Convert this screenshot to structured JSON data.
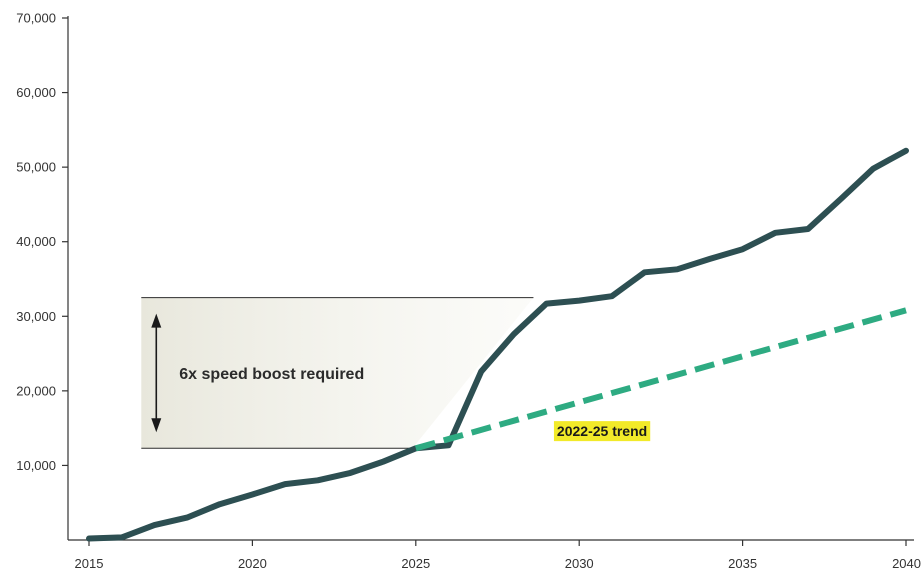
{
  "chart_data": {
    "type": "line",
    "xlim": [
      2015,
      2040
    ],
    "ylim": [
      0,
      70000
    ],
    "x_ticks": [
      2015,
      2020,
      2025,
      2030,
      2035,
      2040
    ],
    "x_tick_labels": [
      "2015",
      "2020",
      "2025",
      "2030",
      "2035",
      "2040"
    ],
    "y_ticks": [
      10000,
      20000,
      30000,
      40000,
      50000,
      60000,
      70000
    ],
    "y_tick_labels": [
      "10,000",
      "20,000",
      "30,000",
      "40,000",
      "50,000",
      "60,000",
      "70,000"
    ],
    "grid": false,
    "series": [
      {
        "color": "#2d4f52",
        "style": "solid",
        "x": [
          2015,
          2016,
          2017,
          2018,
          2019,
          2020,
          2021,
          2022,
          2023,
          2024,
          2025,
          2026,
          2027,
          2028,
          2029,
          2030,
          2031,
          2032,
          2033,
          2034,
          2035,
          2036,
          2037,
          2038,
          2039,
          2040
        ],
        "y": [
          200,
          350,
          2000,
          3000,
          4800,
          6100,
          7500,
          8000,
          9000,
          10500,
          12300,
          12700,
          22600,
          27600,
          31700,
          32100,
          32700,
          35900,
          36300,
          37700,
          39000,
          41200,
          41700,
          45700,
          49800,
          52200
        ]
      },
      {
        "name": "2022-25 trend",
        "color": "#2eab82",
        "style": "dashed",
        "x": [
          2025,
          2040
        ],
        "y": [
          12300,
          30800
        ]
      }
    ],
    "annotations": [
      {
        "text": "6x speed boost required",
        "y_top": 32500,
        "y_bottom": 12300,
        "x_start": 2016.6,
        "x_end_top": 2028.6,
        "x_end_bottom": 2024.9
      },
      {
        "text": "2022-25 trend",
        "x": 2030.7,
        "y": 14600,
        "highlight": "#f2ea29"
      }
    ]
  }
}
